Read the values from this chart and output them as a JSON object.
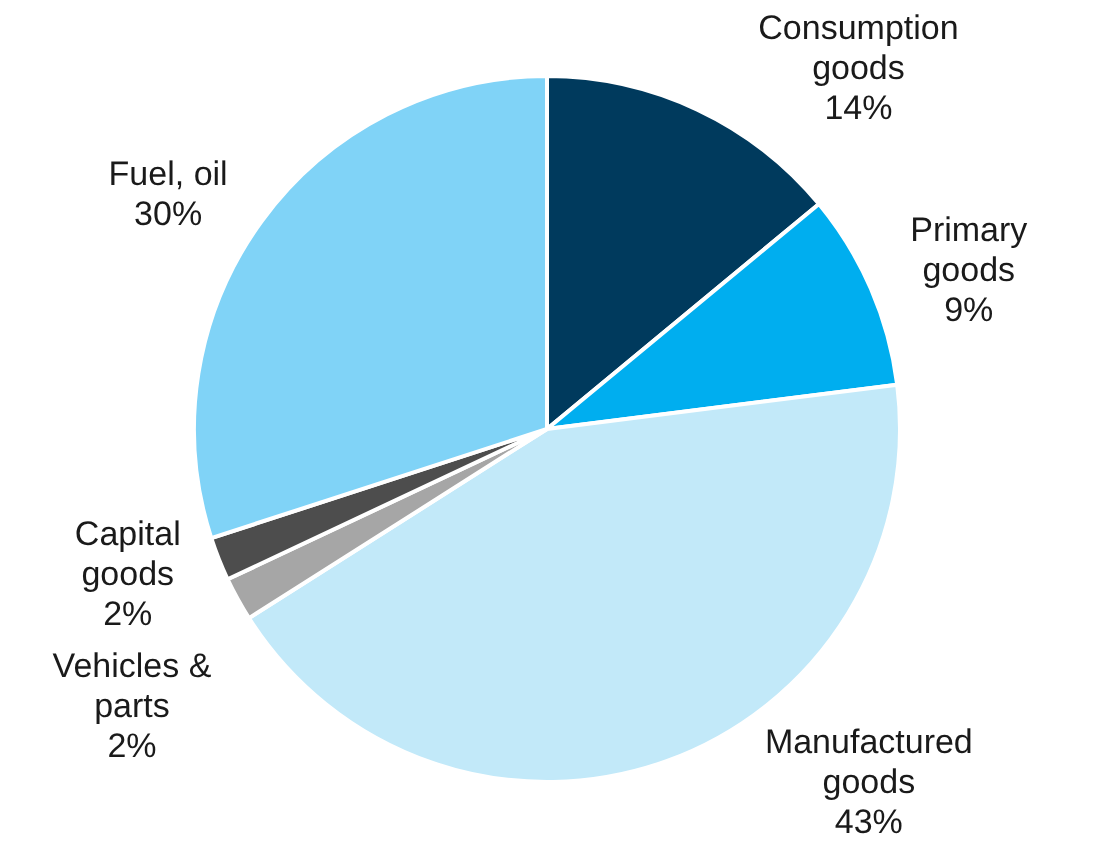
{
  "chart_data": {
    "type": "pie",
    "categories": [
      "Consumption goods",
      "Primary goods",
      "Manufactured goods",
      "Vehicles & parts",
      "Capital goods",
      "Fuel, oil"
    ],
    "values": [
      14,
      9,
      43,
      2,
      2,
      30
    ],
    "colors": [
      "#003a5d",
      "#00aeef",
      "#c2e9f9",
      "#a6a6a6",
      "#4d4d4d",
      "#80d3f7"
    ],
    "value_labels": [
      "14%",
      "9%",
      "43%",
      "2%",
      "2%",
      "30%"
    ],
    "legend": false
  }
}
